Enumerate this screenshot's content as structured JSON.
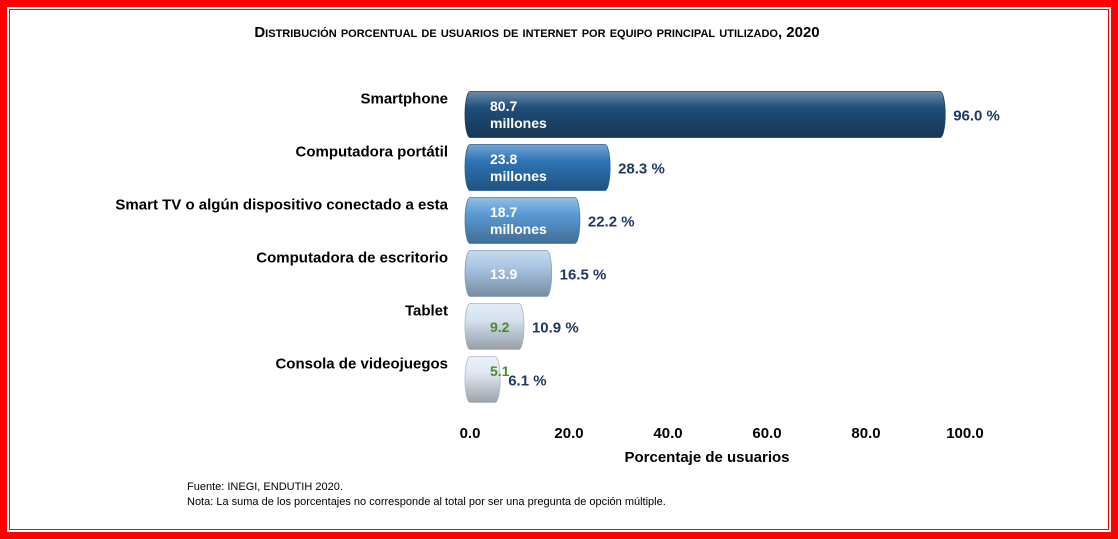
{
  "chart_data": {
    "type": "bar",
    "orientation": "horizontal",
    "title": "Distribución porcentual de usuarios de internet por equipo principal utilizado, 2020",
    "categories": [
      "Smartphone",
      "Computadora portátil",
      "Smart TV o algún dispositivo conectado a esta",
      "Computadora de escritorio",
      "Tablet",
      "Consola de videojuegos"
    ],
    "values": [
      96.0,
      28.3,
      22.2,
      16.5,
      10.9,
      6.1
    ],
    "value_labels": [
      "96.0 %",
      "28.3 %",
      "22.2 %",
      "16.5 %",
      "10.9 %",
      "6.1 %"
    ],
    "colors": [
      "#1f4e79",
      "#2e75b6",
      "#5b9bd5",
      "#a9c6e3",
      "#d5e2f0",
      "#dfe8f2"
    ],
    "inner_labels": [
      "80.7 millones",
      "23.8 millones",
      "18.7 millones",
      "13.9",
      "9.2",
      "5.1"
    ],
    "inner_label_colors": [
      "#ffffff",
      "#ffffff",
      "#ffffff",
      "#ffffff",
      "#4e8a2a",
      "#4e8a2a"
    ],
    "x_label": "Porcentaje de usuarios",
    "xlim": [
      0,
      100
    ],
    "xticks": [
      {
        "value": 0,
        "label": "0.0"
      },
      {
        "value": 20,
        "label": "20.0"
      },
      {
        "value": 40,
        "label": "40.0"
      },
      {
        "value": 60,
        "label": "60.0"
      },
      {
        "value": 80,
        "label": "80.0"
      },
      {
        "value": 100,
        "label": "100.0"
      }
    ],
    "source": "Fuente: INEGI, ENDUTIH 2020.",
    "note": "Nota: La suma de los porcentajes no corresponde al total por ser una pregunta de opción múltiple."
  }
}
